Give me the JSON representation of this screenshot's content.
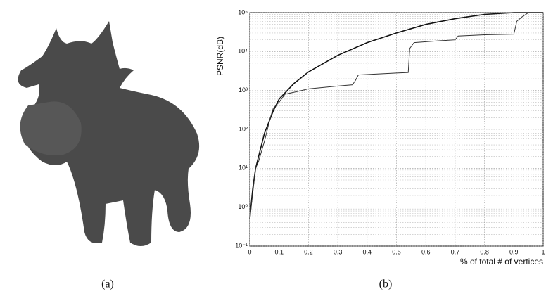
{
  "caption_a": "(a)",
  "chart_data": {
    "type": "line",
    "caption": "(b)",
    "ylabel": "PSNR(dB)",
    "xlabel": "% of total # of vertices",
    "xlim": [
      0,
      1
    ],
    "xticks": [
      0,
      0.1,
      0.2,
      0.3,
      0.4,
      0.5,
      0.6,
      0.7,
      0.8,
      0.9,
      1
    ],
    "ylim": [
      0.1,
      100000
    ],
    "yscale": "log",
    "yticks": [
      {
        "value": 0.1,
        "label": "10⁻¹"
      },
      {
        "value": 1,
        "label": "10⁰"
      },
      {
        "value": 10,
        "label": "10¹"
      },
      {
        "value": 100,
        "label": "10²"
      },
      {
        "value": 1000,
        "label": "10³"
      },
      {
        "value": 10000,
        "label": "10⁴"
      },
      {
        "value": 100000,
        "label": "10⁵"
      }
    ],
    "grid": true,
    "minor_grid": true,
    "series": [
      {
        "color": "#111",
        "x": [
          0,
          0.01,
          0.02,
          0.05,
          0.08,
          0.1,
          0.15,
          0.2,
          0.3,
          0.4,
          0.5,
          0.6,
          0.7,
          0.8,
          0.9,
          1
        ],
        "values": [
          0.5,
          3,
          10,
          80,
          300,
          600,
          1500,
          3000,
          8000,
          17000,
          30000,
          50000,
          70000,
          90000,
          100000,
          100000
        ]
      },
      {
        "color": "#333",
        "x": [
          0,
          0.02,
          0.03,
          0.05,
          0.07,
          0.08,
          0.1,
          0.12,
          0.15,
          0.2,
          0.3,
          0.35,
          0.36,
          0.37,
          0.5,
          0.54,
          0.545,
          0.56,
          0.65,
          0.7,
          0.71,
          0.8,
          0.9,
          0.91,
          0.93,
          0.95
        ],
        "values": [
          0.5,
          10,
          15,
          50,
          200,
          350,
          500,
          800,
          900,
          1100,
          1300,
          1400,
          1800,
          2500,
          2800,
          2900,
          12000,
          17000,
          19000,
          20000,
          25000,
          27000,
          28000,
          60000,
          80000,
          100000
        ]
      }
    ]
  }
}
